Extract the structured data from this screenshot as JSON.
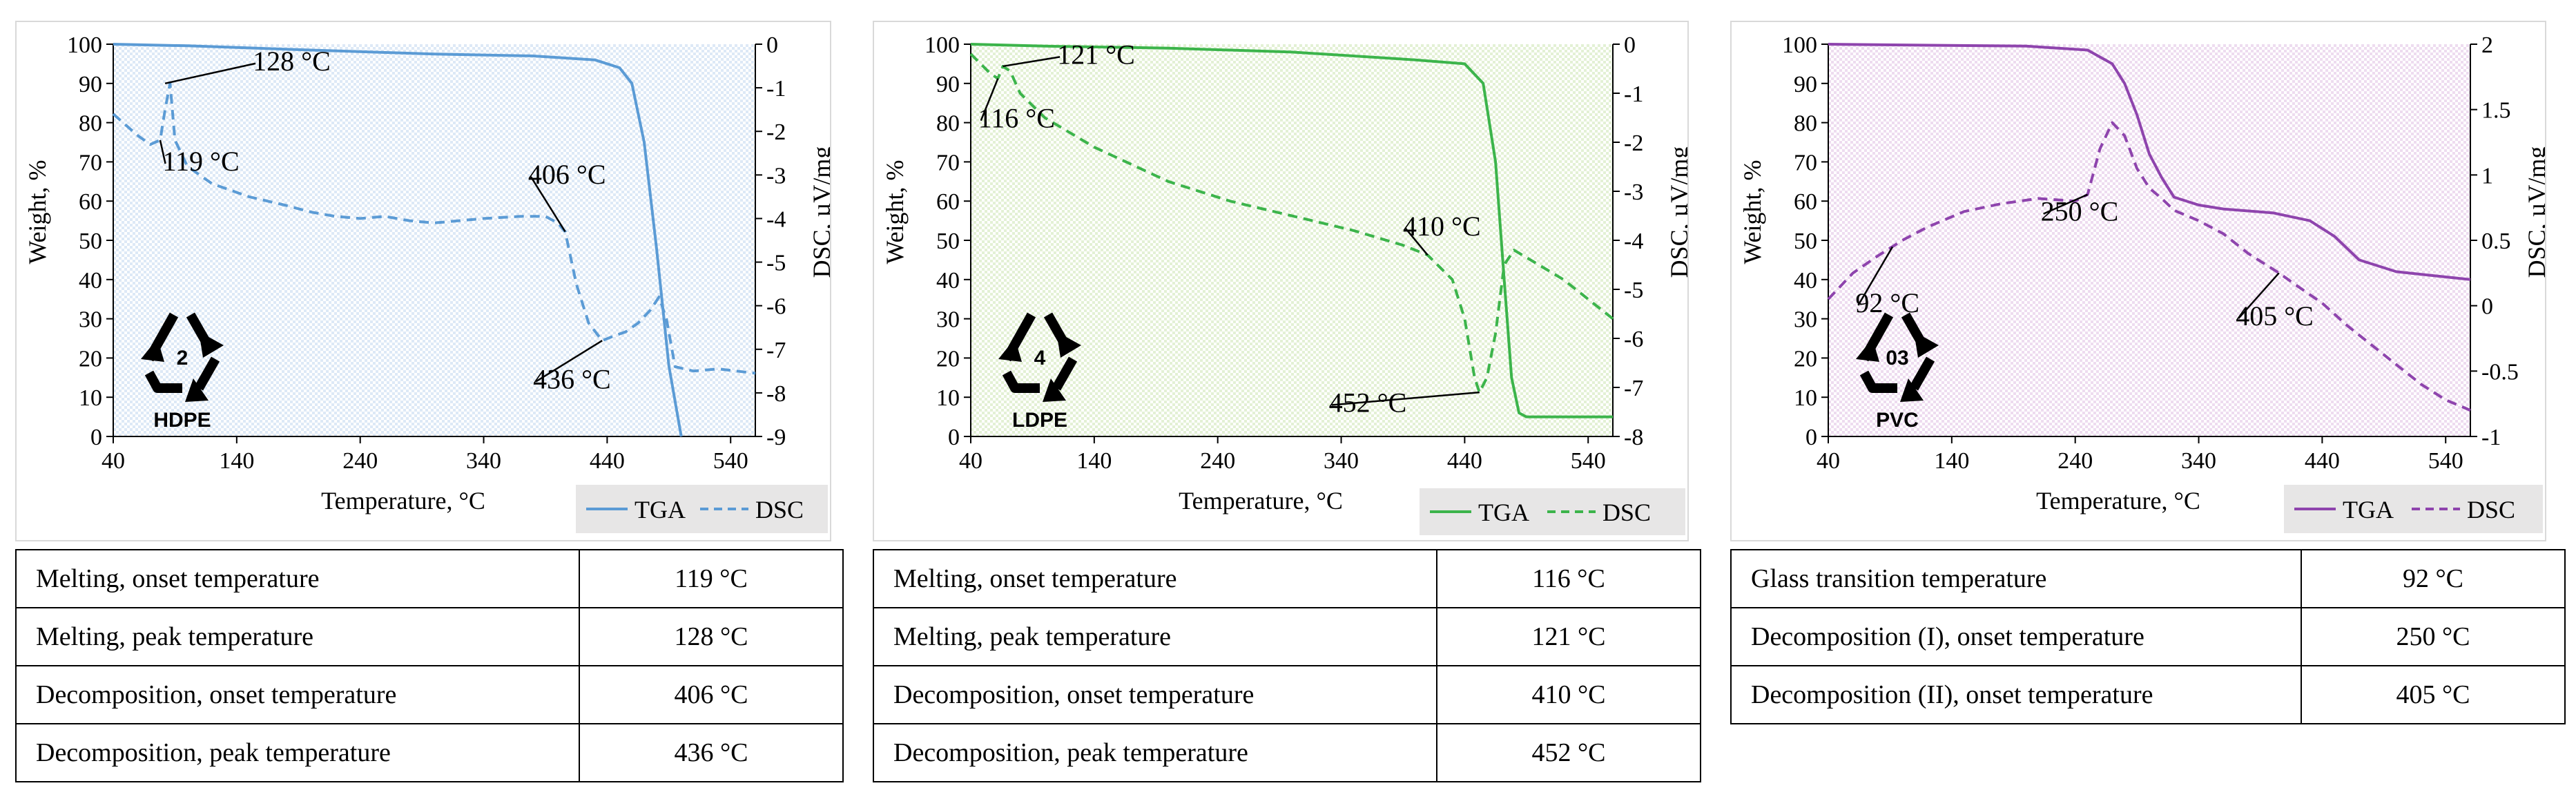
{
  "charts": [
    {
      "symbol": {
        "number": "2",
        "label": "HDPE"
      },
      "ylabel_left": "Weight, %",
      "ylabel_right": "DSC, µV/mg",
      "xlabel": "Temperature, °C",
      "legend": [
        "TGA",
        "DSC"
      ]
    },
    {
      "symbol": {
        "number": "4",
        "label": "LDPE"
      },
      "ylabel_left": "Weight, %",
      "ylabel_right": "DSC, µV/mg",
      "xlabel": "Temperature, °C",
      "legend": [
        "TGA",
        "DSC"
      ]
    },
    {
      "symbol": {
        "number": "03",
        "label": "PVC"
      },
      "ylabel_left": "Weight, %",
      "ylabel_right": "DSC, µV/mg",
      "xlabel": "Temperature, °C",
      "legend": [
        "TGA",
        "DSC"
      ]
    }
  ],
  "chart_data": [
    {
      "type": "line",
      "color": "#5b9bd5",
      "fill_tint": "#dde9f6",
      "xlim": [
        40,
        560
      ],
      "xticks": [
        40,
        140,
        240,
        340,
        440,
        540
      ],
      "xtick_labels": [
        "40",
        "140",
        "240",
        "340",
        "440",
        "540"
      ],
      "ylim_left": [
        0,
        100
      ],
      "yticks_left": [
        0,
        10,
        20,
        30,
        40,
        50,
        60,
        70,
        80,
        90,
        100
      ],
      "ytick_labels_left": [
        "0",
        "10",
        "20",
        "30",
        "40",
        "50",
        "60",
        "70",
        "80",
        "90",
        "100"
      ],
      "ylim_right": [
        -9,
        0
      ],
      "yticks_right": [
        0,
        -1,
        -2,
        -3,
        -4,
        -5,
        -6,
        -7,
        -8,
        -9
      ],
      "ytick_labels_right": [
        "0",
        "-1",
        "-2",
        "-3",
        "-4",
        "-5",
        "-6",
        "-7",
        "-8",
        "-9"
      ],
      "series": [
        {
          "name": "TGA",
          "axis": "left",
          "dash": false,
          "x": [
            40,
            100,
            200,
            300,
            380,
            430,
            450,
            460,
            470,
            480,
            490,
            500
          ],
          "y": [
            100,
            99.6,
            98.5,
            97.5,
            97,
            96,
            94,
            90,
            75,
            48,
            18,
            0
          ]
        },
        {
          "name": "DSC",
          "axis": "right",
          "dash": true,
          "x": [
            40,
            60,
            70,
            78,
            82,
            86,
            90,
            100,
            120,
            150,
            180,
            200,
            220,
            240,
            260,
            280,
            300,
            320,
            340,
            370,
            390,
            400,
            406,
            415,
            425,
            436,
            445,
            455,
            465,
            475,
            482,
            488,
            495,
            510,
            530,
            560
          ],
          "y": [
            -1.6,
            -2.1,
            -2.3,
            -2.2,
            -1.5,
            -0.9,
            -2.2,
            -2.8,
            -3.2,
            -3.5,
            -3.7,
            -3.85,
            -3.95,
            -4.0,
            -3.95,
            -4.05,
            -4.1,
            -4.05,
            -4.0,
            -3.95,
            -3.95,
            -4.1,
            -4.3,
            -5.5,
            -6.4,
            -6.8,
            -6.7,
            -6.6,
            -6.4,
            -6.1,
            -5.8,
            -6.3,
            -7.4,
            -7.5,
            -7.45,
            -7.55
          ]
        }
      ],
      "annotations": [
        {
          "text": "128 °C",
          "x": 82,
          "y": -0.9,
          "axis": "right",
          "tx": 153,
          "ty": -0.6
        },
        {
          "text": "119 °C",
          "x": 78,
          "y": -2.2,
          "axis": "right",
          "tx": 80,
          "ty": -2.9
        },
        {
          "text": "406 °C",
          "x": 406,
          "y": -4.3,
          "axis": "right",
          "tx": 376,
          "ty": -3.2
        },
        {
          "text": "436 °C",
          "x": 436,
          "y": -6.8,
          "axis": "right",
          "tx": 380,
          "ty": -7.9
        }
      ]
    },
    {
      "type": "line",
      "color": "#3cb44b",
      "fill_tint": "#e3f1d5",
      "xlim": [
        40,
        560
      ],
      "xticks": [
        40,
        140,
        240,
        340,
        440,
        540
      ],
      "xtick_labels": [
        "40",
        "140",
        "240",
        "340",
        "440",
        "540"
      ],
      "ylim_left": [
        0,
        100
      ],
      "yticks_left": [
        0,
        10,
        20,
        30,
        40,
        50,
        60,
        70,
        80,
        90,
        100
      ],
      "ytick_labels_left": [
        "0",
        "10",
        "20",
        "30",
        "40",
        "50",
        "60",
        "70",
        "80",
        "90",
        "100"
      ],
      "ylim_right": [
        -8,
        0
      ],
      "yticks_right": [
        0,
        -1,
        -2,
        -3,
        -4,
        -5,
        -6,
        -7,
        -8
      ],
      "ytick_labels_right": [
        "0",
        "-1",
        "-2",
        "-3",
        "-4",
        "-5",
        "-6",
        "-7",
        "-8"
      ],
      "series": [
        {
          "name": "TGA",
          "axis": "left",
          "dash": false,
          "x": [
            40,
            100,
            200,
            300,
            400,
            440,
            455,
            465,
            472,
            478,
            484,
            490,
            500,
            520,
            560
          ],
          "y": [
            100,
            99.5,
            99,
            98,
            96,
            95,
            90,
            70,
            40,
            15,
            6,
            5,
            5,
            5,
            5
          ]
        },
        {
          "name": "DSC",
          "axis": "right",
          "dash": true,
          "x": [
            40,
            48,
            56,
            62,
            66,
            72,
            80,
            100,
            140,
            200,
            250,
            300,
            350,
            390,
            410,
            430,
            440,
            448,
            452,
            458,
            465,
            472,
            480,
            490,
            500,
            520,
            540,
            560
          ],
          "y": [
            -0.2,
            -0.4,
            -0.6,
            -0.7,
            -0.45,
            -0.55,
            -1.0,
            -1.5,
            -2.1,
            -2.8,
            -3.2,
            -3.5,
            -3.8,
            -4.1,
            -4.3,
            -4.8,
            -5.6,
            -6.8,
            -7.1,
            -6.8,
            -5.9,
            -4.5,
            -4.2,
            -4.35,
            -4.5,
            -4.8,
            -5.2,
            -5.6
          ]
        }
      ],
      "annotations": [
        {
          "text": "121 °C",
          "x": 66,
          "y": -0.45,
          "axis": "right",
          "tx": 110,
          "ty": -0.4
        },
        {
          "text": "116 °C",
          "x": 62,
          "y": -0.7,
          "axis": "right",
          "tx": 46,
          "ty": -1.7
        },
        {
          "text": "410 °C",
          "x": 410,
          "y": -4.3,
          "axis": "right",
          "tx": 390,
          "ty": -3.9
        },
        {
          "text": "452 °C",
          "x": 452,
          "y": -7.1,
          "axis": "right",
          "tx": 330,
          "ty": -7.5
        }
      ]
    },
    {
      "type": "line",
      "color": "#8e44ad",
      "fill_tint": "#eedcf0",
      "xlim": [
        40,
        560
      ],
      "xticks": [
        40,
        140,
        240,
        340,
        440,
        540
      ],
      "xtick_labels": [
        "40",
        "140",
        "240",
        "340",
        "440",
        "540"
      ],
      "ylim_left": [
        0,
        100
      ],
      "yticks_left": [
        0,
        10,
        20,
        30,
        40,
        50,
        60,
        70,
        80,
        90,
        100
      ],
      "ytick_labels_left": [
        "0",
        "10",
        "20",
        "30",
        "40",
        "50",
        "60",
        "70",
        "80",
        "90",
        "100"
      ],
      "ylim_right": [
        -1,
        2
      ],
      "yticks_right": [
        2,
        1.5,
        1,
        0.5,
        0,
        -0.5,
        -1
      ],
      "ytick_labels_right": [
        "2",
        "1.5",
        "1",
        "0.5",
        "0",
        "-0.5",
        "-1"
      ],
      "series": [
        {
          "name": "TGA",
          "axis": "left",
          "dash": false,
          "x": [
            40,
            100,
            200,
            250,
            270,
            280,
            290,
            300,
            310,
            320,
            340,
            360,
            400,
            430,
            450,
            470,
            500,
            530,
            560
          ],
          "y": [
            100,
            99.8,
            99.5,
            98.5,
            95,
            90,
            82,
            72,
            66,
            61,
            59,
            58,
            57,
            55,
            51,
            45,
            42,
            41,
            40
          ]
        },
        {
          "name": "DSC",
          "axis": "right",
          "dash": true,
          "x": [
            40,
            60,
            80,
            100,
            120,
            150,
            180,
            210,
            240,
            250,
            260,
            270,
            280,
            290,
            300,
            310,
            320,
            340,
            360,
            380,
            405,
            420,
            440,
            460,
            480,
            500,
            520,
            540,
            560
          ],
          "y": [
            0.05,
            0.25,
            0.38,
            0.5,
            0.6,
            0.72,
            0.78,
            0.82,
            0.8,
            0.85,
            1.2,
            1.4,
            1.3,
            1.05,
            0.9,
            0.82,
            0.73,
            0.65,
            0.55,
            0.4,
            0.25,
            0.15,
            0.02,
            -0.15,
            -0.3,
            -0.45,
            -0.6,
            -0.72,
            -0.8
          ]
        }
      ],
      "annotations": [
        {
          "text": "92 °C",
          "x": 92,
          "y": 0.45,
          "axis": "right",
          "tx": 62,
          "ty": -0.05
        },
        {
          "text": "250 °C",
          "x": 250,
          "y": 0.85,
          "axis": "right",
          "tx": 212,
          "ty": 0.65
        },
        {
          "text": "405 °C",
          "x": 405,
          "y": 0.25,
          "axis": "right",
          "tx": 370,
          "ty": -0.15
        }
      ]
    }
  ],
  "tables": [
    {
      "rows": [
        {
          "property": "Melting,  onset temperature",
          "value": "119 °C"
        },
        {
          "property": "Melting,  peak temperature",
          "value": "128 °C"
        },
        {
          "property": "Decomposition,  onset temperature",
          "value": "406 °C"
        },
        {
          "property": "Decomposition,  peak temperature",
          "value": "436 °C"
        }
      ]
    },
    {
      "rows": [
        {
          "property": "Melting,  onset temperature",
          "value": "116 °C"
        },
        {
          "property": "Melting,  peak temperature",
          "value": "121 °C"
        },
        {
          "property": "Decomposition,  onset temperature",
          "value": "410 °C"
        },
        {
          "property": "Decomposition,  peak temperature",
          "value": "452 °C"
        }
      ]
    },
    {
      "rows": [
        {
          "property": "Glass transition  temperature",
          "value": "92 °C"
        },
        {
          "property": "Decomposition  (I), onset temperature",
          "value": "250 °C"
        },
        {
          "property": "Decomposition  (II), onset temperature",
          "value": "405 °C"
        }
      ]
    }
  ]
}
